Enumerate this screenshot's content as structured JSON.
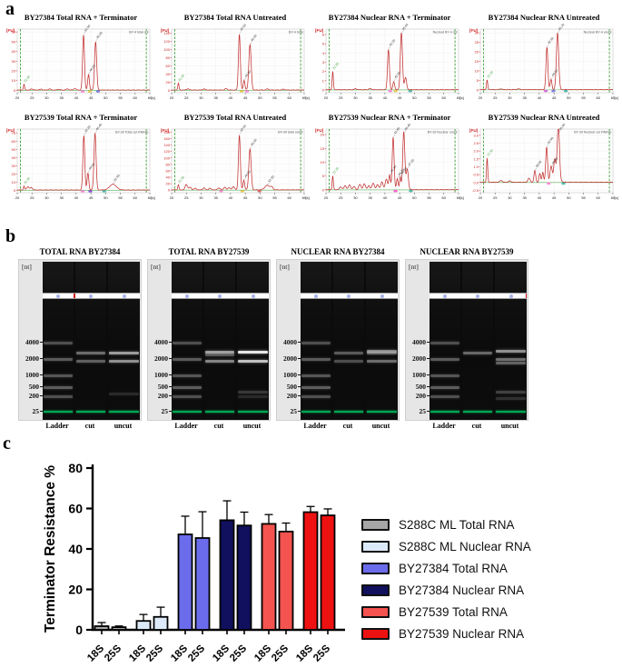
{
  "figure": {
    "panel_a_label": "a",
    "panel_b_label": "b",
    "panel_c_label": "c"
  },
  "electropherograms": {
    "fu_label": "[FU]",
    "s_label": "[s]",
    "x_ticks": [
      20,
      25,
      30,
      35,
      40,
      45,
      50,
      55,
      60,
      65
    ],
    "plots": [
      {
        "title": "BY27384 Total RNA + Terminator",
        "corner_label": "BY-4 total cut",
        "y_ticks": [
          60,
          50,
          40,
          30,
          20,
          10,
          0
        ],
        "dec": 0,
        "ymin": -2.5,
        "ymax": 63,
        "marker": {
          "x": 22.3,
          "h": 6
        },
        "peaks": [
          {
            "x": 42.5,
            "h": 57,
            "w": 0.45,
            "lab": true
          },
          {
            "x": 44.2,
            "h": 16,
            "w": 0.4,
            "lab": true
          },
          {
            "x": 46.6,
            "h": 50,
            "w": 0.5,
            "lab": true
          }
        ],
        "bumps": [
          {
            "x": 25,
            "h": 1.2
          },
          {
            "x": 28,
            "h": 0.9
          },
          {
            "x": 31,
            "h": 1.1
          },
          {
            "x": 34,
            "h": 0.8
          },
          {
            "x": 37,
            "h": 1.2
          },
          {
            "x": 39.5,
            "h": 1.5
          }
        ],
        "blobs": [
          {
            "x": 42.2,
            "c": "#ff7ad5"
          },
          {
            "x": 44.6,
            "c": "#e8c23a"
          },
          {
            "x": 47.4,
            "c": "#6b6bdd"
          }
        ]
      },
      {
        "title": "BY27384 Total RNA Untreated",
        "corner_label": "BY-4 total",
        "y_ticks": [
          140,
          120,
          100,
          80,
          60,
          40,
          20,
          0
        ],
        "dec": 0,
        "ymin": -6,
        "ymax": 150,
        "marker": {
          "x": 22.3,
          "h": 17
        },
        "peaks": [
          {
            "x": 43.0,
            "h": 138,
            "w": 0.45,
            "lab": true
          },
          {
            "x": 44.6,
            "h": 24,
            "w": 0.4,
            "lab": true
          },
          {
            "x": 46.6,
            "h": 112,
            "w": 0.55,
            "lab": true
          }
        ],
        "bumps": [
          {
            "x": 25.5,
            "h": 3
          },
          {
            "x": 31,
            "h": 2.5
          },
          {
            "x": 38.5,
            "h": 3.5
          },
          {
            "x": 52.5,
            "h": 2.5
          },
          {
            "x": 58,
            "h": 2
          }
        ],
        "blobs": [
          {
            "x": 43.8,
            "c": "#e8c23a"
          },
          {
            "x": 45.6,
            "c": "#ff7ad5"
          }
        ]
      },
      {
        "title": "BY27384 Nuclear RNA + Terminator",
        "corner_label": "Nuclear BY-4 cut",
        "y_ticks": [
          6,
          5,
          4,
          3,
          2,
          1,
          0
        ],
        "dec": 0,
        "ymin": -0.3,
        "ymax": 6.6,
        "marker": {
          "x": 22.3,
          "h": 2.0
        },
        "peaks": [
          {
            "x": 41.2,
            "h": 4.4,
            "w": 0.45,
            "lab": true
          },
          {
            "x": 43.0,
            "h": 0.9,
            "w": 0.4,
            "lab": true
          },
          {
            "x": 45.6,
            "h": 6.2,
            "w": 0.5,
            "lab": true
          },
          {
            "x": 47.0,
            "h": 1.3,
            "w": 0.5
          }
        ],
        "bumps": [
          {
            "x": 30,
            "h": 0.1
          },
          {
            "x": 35,
            "h": 0.12
          }
        ],
        "blobs": [
          {
            "x": 41.8,
            "c": "#ff7ad5"
          },
          {
            "x": 43.6,
            "c": "#e8c23a"
          },
          {
            "x": 48.6,
            "c": "#3aaea6"
          }
        ]
      },
      {
        "title": "BY27384 Nuclear RNA Untreated",
        "corner_label": "Nuclear BY-4 uncut",
        "y_ticks": [
          30,
          25,
          20,
          15,
          10,
          5,
          0
        ],
        "dec": 0,
        "ymin": -1.5,
        "ymax": 32,
        "marker": {
          "x": 22.3,
          "h": 5.2
        },
        "peaks": [
          {
            "x": 42.6,
            "h": 22.5,
            "w": 0.45,
            "lab": true
          },
          {
            "x": 44.0,
            "h": 5.5,
            "w": 0.4,
            "lab": true
          },
          {
            "x": 46.2,
            "h": 30,
            "w": 0.55,
            "lab": true
          }
        ],
        "bumps": [
          {
            "x": 27,
            "h": 0.4
          },
          {
            "x": 33,
            "h": 0.4
          }
        ],
        "blobs": [
          {
            "x": 42.2,
            "c": "#cc59d6"
          },
          {
            "x": 44.8,
            "c": "#6b6bdd"
          },
          {
            "x": 49.0,
            "c": "#3aaea6"
          }
        ]
      },
      {
        "title": "BY27539 Total RNA + Terminator",
        "corner_label": "BY-39 Total cut RNAse",
        "y_ticks": [
          70,
          60,
          50,
          40,
          30,
          20,
          10,
          0
        ],
        "dec": 0,
        "ymin": -3,
        "ymax": 75,
        "marker": {
          "x": 22.3,
          "h": 5
        },
        "peaks": [
          {
            "x": 42.6,
            "h": 67,
            "w": 0.45,
            "lab": true
          },
          {
            "x": 44.0,
            "h": 21,
            "w": 0.4,
            "lab": true
          },
          {
            "x": 46.4,
            "h": 70,
            "w": 0.5,
            "lab": true
          },
          {
            "x": 52.5,
            "h": 7,
            "w": 1.6,
            "lab": true
          }
        ],
        "bumps": [
          {
            "x": 23.6,
            "h": 4
          },
          {
            "x": 24.8,
            "h": 3
          }
        ],
        "blobs": [
          {
            "x": 42.2,
            "c": "#ff7ad5"
          },
          {
            "x": 44.8,
            "c": "#7a3ad6"
          },
          {
            "x": 49.5,
            "c": "#3aaea6"
          }
        ]
      },
      {
        "title": "BY27539 Total RNA Untreated",
        "corner_label": "BY-39 total uncut",
        "y_ticks": [
          180,
          160,
          140,
          120,
          100,
          80,
          60,
          40,
          20,
          0
        ],
        "dec": 0,
        "ymin": -8,
        "ymax": 190,
        "marker": {
          "x": 22.3,
          "h": 16
        },
        "peaks": [
          {
            "x": 43.0,
            "h": 172,
            "w": 0.45,
            "lab": true
          },
          {
            "x": 44.5,
            "h": 30,
            "w": 0.4,
            "lab": true
          },
          {
            "x": 46.6,
            "h": 128,
            "w": 0.55,
            "lab": true
          },
          {
            "x": 52.5,
            "h": 14,
            "w": 1.2,
            "lab": true
          }
        ],
        "bumps": [
          {
            "x": 25,
            "h": 17
          },
          {
            "x": 26.3,
            "h": 8
          },
          {
            "x": 28,
            "h": 5
          },
          {
            "x": 31,
            "h": 6
          },
          {
            "x": 33,
            "h": 5
          },
          {
            "x": 36,
            "h": 6
          },
          {
            "x": 38,
            "h": 8
          },
          {
            "x": 39.5,
            "h": 7
          },
          {
            "x": 41,
            "h": 10
          },
          {
            "x": 54,
            "h": 8
          }
        ],
        "blobs": [
          {
            "x": 36.8,
            "c": "#ff7ad5"
          },
          {
            "x": 44.0,
            "c": "#e8c23a"
          },
          {
            "x": 49.8,
            "c": "#d65a5a"
          }
        ]
      },
      {
        "title": "BY27539 Nuclear RNA + Terminator",
        "corner_label": "BY-39 Nuclear uncut",
        "y_ticks": [
          20,
          15,
          10,
          5,
          0
        ],
        "dec": 0,
        "ymin": -1,
        "ymax": 22,
        "marker": {
          "x": 22.3,
          "h": 5
        },
        "peaks": [
          {
            "x": 41.6,
            "h": 5.2,
            "w": 0.4,
            "lab": true
          },
          {
            "x": 42.8,
            "h": 19,
            "w": 0.45,
            "lab": true
          },
          {
            "x": 44.2,
            "h": 4,
            "w": 0.4,
            "lab": true
          },
          {
            "x": 45.2,
            "h": 4.5,
            "w": 0.35,
            "lab": true
          },
          {
            "x": 46.4,
            "h": 21,
            "w": 0.5,
            "lab": true
          },
          {
            "x": 47.6,
            "h": 7.5,
            "w": 0.5,
            "lab": true
          }
        ],
        "bumps": [
          {
            "x": 25,
            "h": 1
          },
          {
            "x": 26.5,
            "h": 1.4
          },
          {
            "x": 28,
            "h": 1.7
          },
          {
            "x": 29.5,
            "h": 1.1
          },
          {
            "x": 31.5,
            "h": 1.9
          },
          {
            "x": 33,
            "h": 2.1
          },
          {
            "x": 34.5,
            "h": 1.4
          },
          {
            "x": 36,
            "h": 2.4
          },
          {
            "x": 37.5,
            "h": 1.9
          },
          {
            "x": 39,
            "h": 2.8
          },
          {
            "x": 40.5,
            "h": 3.8
          }
        ],
        "blobs": [
          {
            "x": 43.6,
            "c": "#ff44cc"
          },
          {
            "x": 48.8,
            "c": "#3aaea6"
          }
        ]
      },
      {
        "title": "BY27539 Nuclear RNA Untreated",
        "corner_label": "BY-39 Nuclear cut RNAse",
        "y_ticks": [
          3.0,
          2.5,
          2.0,
          1.5,
          1.0,
          0.5,
          0.0,
          -0.5
        ],
        "dec": 1,
        "ymin": -0.65,
        "ymax": 3.4,
        "marker": {
          "x": 22.3,
          "h": 1.55
        },
        "peaks": [
          {
            "x": 38.5,
            "h": 0.75,
            "w": 0.4,
            "lab": true
          },
          {
            "x": 40.2,
            "h": 0.55,
            "w": 0.4
          },
          {
            "x": 41.2,
            "h": 0.65,
            "w": 0.35
          },
          {
            "x": 42.5,
            "h": 2.25,
            "w": 0.45,
            "lab": true
          },
          {
            "x": 44.0,
            "h": 0.95,
            "w": 0.5,
            "lab": true
          },
          {
            "x": 45.2,
            "h": 0.85,
            "w": 0.4
          },
          {
            "x": 46.5,
            "h": 3.15,
            "w": 0.5,
            "lab": true
          }
        ],
        "bumps": [
          {
            "x": 27,
            "h": 0.12
          },
          {
            "x": 30,
            "h": 0.08
          },
          {
            "x": 36.5,
            "h": 0.25
          },
          {
            "x": 45.8,
            "h": 0.8,
            "w": 1.2
          }
        ],
        "blobs": [
          {
            "x": 43.2,
            "c": "#ff7ad5"
          },
          {
            "x": 48.2,
            "c": "#3aaea6"
          }
        ]
      }
    ]
  },
  "gels": {
    "nt_label": "[nt]",
    "tick_values": [
      4000,
      2000,
      1000,
      500,
      200,
      25
    ],
    "lane_labels": [
      "Ladder",
      "cut",
      "uncut"
    ],
    "ladder_bands": [
      {
        "nt": 4000,
        "b": 0.28
      },
      {
        "nt": 2000,
        "b": 0.32
      },
      {
        "nt": 1000,
        "b": 0.3
      },
      {
        "nt": 500,
        "b": 0.33
      },
      {
        "nt": 200,
        "b": 0.28
      }
    ],
    "marker_nt": 25,
    "marker_color": "#00a651",
    "items": [
      {
        "title": "TOTAL RNA BY27384",
        "strip_mark": 0.335,
        "cut": [
          {
            "nt": 2600,
            "b": 0.4
          },
          {
            "nt": 1800,
            "b": 0.35
          }
        ],
        "uncut": [
          {
            "nt": 2600,
            "b": 0.6
          },
          {
            "nt": 1800,
            "b": 0.55
          },
          {
            "nt": 250,
            "b": 0.12
          }
        ]
      },
      {
        "title": "TOTAL RNA BY27539",
        "strip_mark": null,
        "cut": [
          {
            "nt": 2700,
            "b": 0.6
          },
          {
            "nt": 2400,
            "b": 0.3
          },
          {
            "nt": 1800,
            "b": 0.5
          }
        ],
        "uncut": [
          {
            "nt": 2700,
            "b": 0.9
          },
          {
            "nt": 1800,
            "b": 0.75
          },
          {
            "nt": 300,
            "b": 0.18
          },
          {
            "nt": 200,
            "b": 0.12
          }
        ]
      },
      {
        "title": "NUCLEAR RNA BY27384",
        "strip_mark": null,
        "cut": [
          {
            "nt": 2600,
            "b": 0.32
          },
          {
            "nt": 1800,
            "b": 0.28
          }
        ],
        "uncut": [
          {
            "nt": 2800,
            "b": 0.5
          },
          {
            "nt": 2600,
            "b": 0.38
          },
          {
            "nt": 1800,
            "b": 0.4
          }
        ]
      },
      {
        "title": "NUCLEAR RNA BY27539",
        "strip_mark": 1.0,
        "cut": [
          {
            "nt": 2600,
            "b": 0.38
          }
        ],
        "uncut": [
          {
            "nt": 2800,
            "b": 0.55
          },
          {
            "nt": 2000,
            "b": 0.4
          },
          {
            "nt": 1700,
            "b": 0.35
          },
          {
            "nt": 300,
            "b": 0.22
          },
          {
            "nt": 150,
            "b": 0.15
          }
        ]
      }
    ]
  },
  "chart_data": {
    "type": "bar",
    "title": "",
    "xlabel": "",
    "ylabel": "Terminator Resistance %",
    "ylim": [
      0,
      80
    ],
    "yticks": [
      0,
      20,
      40,
      60,
      80
    ],
    "grid": false,
    "legend_position": "right",
    "group_categories": [
      "18S",
      "25S"
    ],
    "series": [
      {
        "name": "S288C ML Total RNA",
        "color": "#a6a6a6",
        "values": [
          1.8,
          1.3
        ],
        "errors": [
          1.8,
          0.6
        ]
      },
      {
        "name": "S288C ML Nuclear RNA",
        "color": "#dce9f8",
        "values": [
          4.4,
          6.4
        ],
        "errors": [
          3.2,
          4.8
        ]
      },
      {
        "name": "BY27384 Total RNA",
        "color": "#6b6ceb",
        "values": [
          47.2,
          45.4
        ],
        "errors": [
          9.0,
          13.0
        ]
      },
      {
        "name": "BY27384 Nuclear RNA",
        "color": "#10105e",
        "values": [
          54.2,
          51.6
        ],
        "errors": [
          9.6,
          6.6
        ]
      },
      {
        "name": "BY27539 Total RNA",
        "color": "#f4534f",
        "values": [
          52.4,
          48.6
        ],
        "errors": [
          4.6,
          4.2
        ]
      },
      {
        "name": "BY27539 Nuclear RNA",
        "color": "#ee1111",
        "values": [
          58.2,
          56.6
        ],
        "errors": [
          2.8,
          3.2
        ]
      }
    ]
  }
}
